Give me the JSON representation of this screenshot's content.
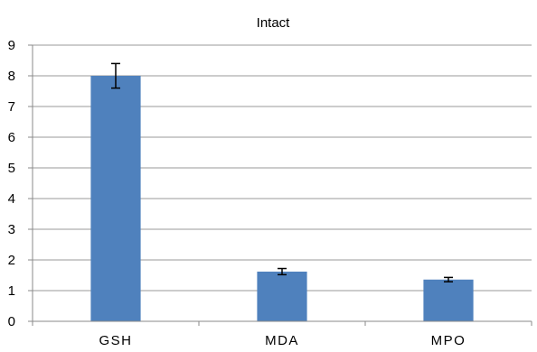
{
  "chart_data": {
    "type": "bar",
    "title": "Intact",
    "categories": [
      "GSH",
      "MDA",
      "MPO"
    ],
    "values": [
      8.0,
      1.62,
      1.36
    ],
    "errors": [
      0.4,
      0.1,
      0.07
    ],
    "ylim": [
      0,
      9
    ],
    "yticks": [
      "0",
      "1",
      "2",
      "3",
      "4",
      "5",
      "6",
      "7",
      "8",
      "9"
    ],
    "grid": true,
    "legend": "none",
    "bar_color": "#4f81bd",
    "xlabel": "",
    "ylabel": ""
  }
}
